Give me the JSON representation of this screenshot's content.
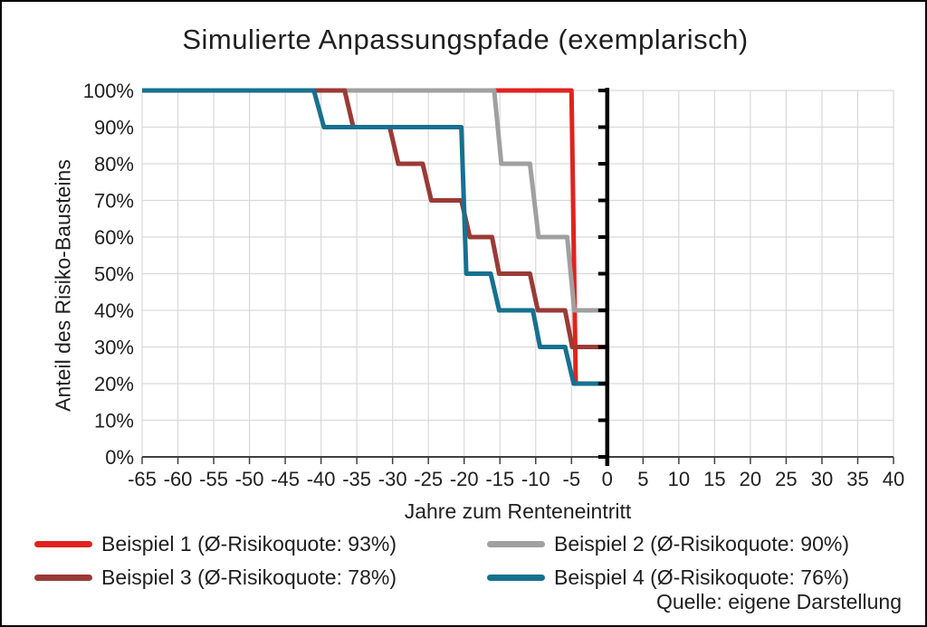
{
  "source_note": "Quelle: eigene Darstellung",
  "chart_data": {
    "type": "line",
    "step_style": true,
    "title": "Simulierte Anpassungspfade (exemplarisch)",
    "xlabel": "Jahre zum Renteneintritt",
    "ylabel": "Anteil des Risiko-Bausteins",
    "xlim": [
      -65,
      40
    ],
    "ylim": [
      0,
      100
    ],
    "xticks": [
      -65,
      -60,
      -55,
      -50,
      -45,
      -40,
      -35,
      -30,
      -25,
      -20,
      -15,
      -10,
      -5,
      0,
      5,
      10,
      15,
      20,
      25,
      30,
      35,
      40
    ],
    "yticks": [
      0,
      10,
      20,
      30,
      40,
      50,
      60,
      70,
      80,
      90,
      100
    ],
    "ytick_suffix": "%",
    "grid": true,
    "gridline_color": "#d9d9d9",
    "axis_color": "#404040",
    "zero_year_line_color": "#000000",
    "legend_position": "bottom",
    "series": [
      {
        "name": "Beispiel 1 (Ø-Risikoquote: 93%)",
        "color": "#e0231f",
        "points": [
          [
            -65,
            100
          ],
          [
            -5,
            100
          ],
          [
            -4.4,
            20
          ],
          [
            0,
            20
          ]
        ]
      },
      {
        "name": "Beispiel 2 (Ø-Risikoquote: 90%)",
        "color": "#a0a0a0",
        "points": [
          [
            -65,
            100
          ],
          [
            -15.8,
            100
          ],
          [
            -14.8,
            80
          ],
          [
            -10.8,
            80
          ],
          [
            -9.6,
            60
          ],
          [
            -5.6,
            60
          ],
          [
            -4.6,
            40
          ],
          [
            0,
            40
          ]
        ]
      },
      {
        "name": "Beispiel 3 (Ø-Risikoquote: 78%)",
        "color": "#9a3a36",
        "points": [
          [
            -65,
            100
          ],
          [
            -36.7,
            100
          ],
          [
            -35.5,
            90
          ],
          [
            -30.4,
            90
          ],
          [
            -29.2,
            80
          ],
          [
            -25.8,
            80
          ],
          [
            -24.6,
            70
          ],
          [
            -20.4,
            70
          ],
          [
            -19.2,
            60
          ],
          [
            -16.1,
            60
          ],
          [
            -15.1,
            50
          ],
          [
            -10.8,
            50
          ],
          [
            -9.7,
            40
          ],
          [
            -5.9,
            40
          ],
          [
            -4.9,
            30
          ],
          [
            0,
            30
          ]
        ]
      },
      {
        "name": "Beispiel 4 (Ø-Risikoquote: 76%)",
        "color": "#16718f",
        "points": [
          [
            -65,
            100
          ],
          [
            -41,
            100
          ],
          [
            -39.6,
            90
          ],
          [
            -20.4,
            90
          ],
          [
            -19.7,
            50
          ],
          [
            -16.3,
            50
          ],
          [
            -15.1,
            40
          ],
          [
            -10.4,
            40
          ],
          [
            -9.4,
            30
          ],
          [
            -5.9,
            30
          ],
          [
            -4.7,
            20
          ],
          [
            0,
            20
          ]
        ]
      }
    ]
  }
}
